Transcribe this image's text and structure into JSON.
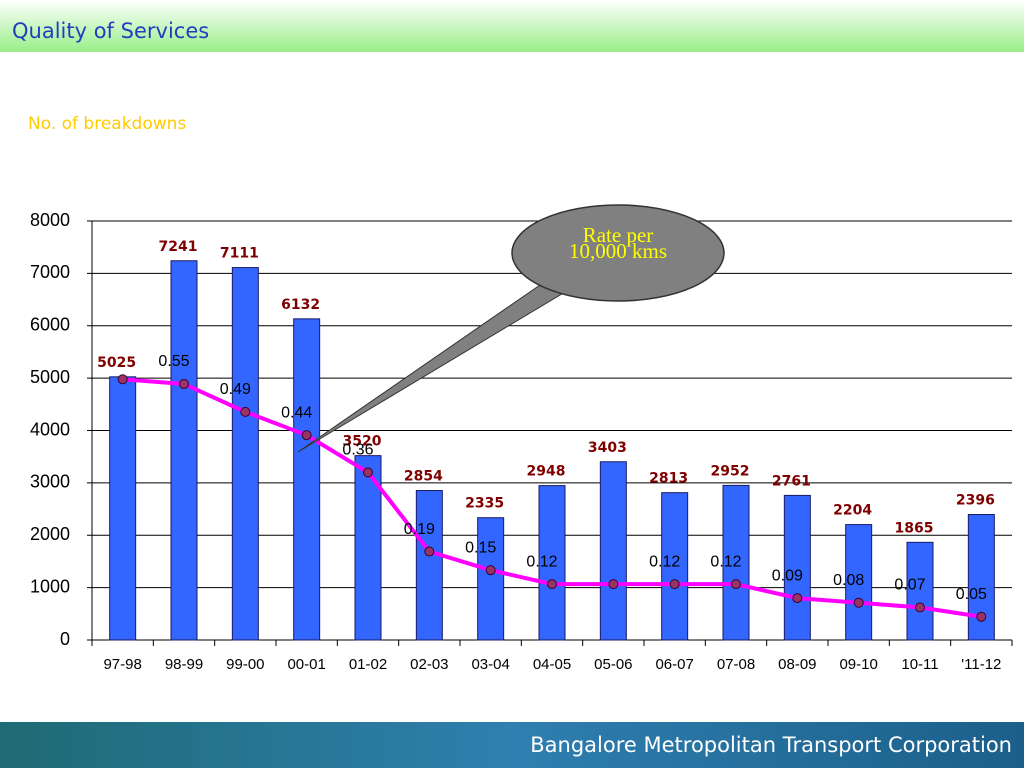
{
  "header": {
    "title": "Quality of Services"
  },
  "footer": {
    "text": "Bangalore Metropolitan Transport Corporation"
  },
  "chart_data": {
    "type": "bar",
    "subtitle": "No. of breakdowns",
    "annotation": "Rate per 10,000 kms",
    "categories": [
      "97-98",
      "98-99",
      "99-00",
      "00-01",
      "01-02",
      "02-03",
      "03-04",
      "04-05",
      "05-06",
      "06-07",
      "07-08",
      "08-09",
      "09-10",
      "10-11",
      "'11-12"
    ],
    "series": [
      {
        "type": "bar",
        "color": "#3366ff",
        "values": [
          5025,
          7241,
          7111,
          6132,
          3520,
          2854,
          2335,
          2948,
          3403,
          2813,
          2952,
          2761,
          2204,
          1865,
          2396
        ]
      },
      {
        "type": "line",
        "axis": "y2",
        "color": "#ff00ff",
        "values": [
          0.56,
          0.55,
          0.49,
          0.44,
          0.36,
          0.19,
          0.15,
          0.12,
          0.12,
          0.12,
          0.12,
          0.09,
          0.08,
          0.07,
          0.05
        ],
        "value_labels": [
          null,
          "0.55",
          "0.49",
          "0.44",
          "0.36",
          "0.19",
          "0.15",
          "0.12",
          null,
          "0.12",
          "0.12",
          "0.09",
          "0.08",
          "0.07",
          "0.05"
        ]
      }
    ],
    "ylim": [
      0,
      8000
    ],
    "yticks": [
      0,
      1000,
      2000,
      3000,
      4000,
      5000,
      6000,
      7000,
      8000
    ],
    "y2lim": [
      0,
      0.9
    ],
    "grid": true
  }
}
